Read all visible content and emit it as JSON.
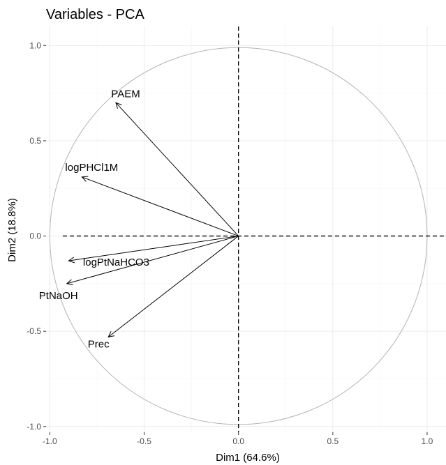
{
  "chart_data": {
    "type": "scatter",
    "title": "Variables - PCA",
    "xlabel": "Dim1 (64.6%)",
    "ylabel": "Dim2 (18.8%)",
    "xlim": [
      -1.02,
      1.1
    ],
    "ylim": [
      -1.03,
      1.1
    ],
    "x_ticks": [
      -1.0,
      -0.5,
      0.0,
      0.5,
      1.0
    ],
    "x_tick_labels": [
      "-1.0",
      "-0.5",
      "0.0",
      "0.5",
      "1.0"
    ],
    "y_ticks": [
      -1.0,
      -0.5,
      0.0,
      0.5,
      1.0
    ],
    "y_tick_labels": [
      "-1.0",
      "-0.5",
      "0.0",
      "0.5",
      "1.0"
    ],
    "grid": true,
    "correlation_circle": true,
    "variables": [
      {
        "name": "PAEM",
        "x": -0.65,
        "y": 0.7
      },
      {
        "name": "logPHCl1M",
        "x": -0.83,
        "y": 0.31
      },
      {
        "name": "logPtNaHCO3",
        "x": -0.9,
        "y": -0.13
      },
      {
        "name": "PtNaOH",
        "x": -0.91,
        "y": -0.25
      },
      {
        "name": "Prec",
        "x": -0.69,
        "y": -0.53
      }
    ],
    "colors": {
      "arrow": "#000000",
      "circle": "#b3b3b3",
      "grid": "#ebebeb"
    }
  }
}
